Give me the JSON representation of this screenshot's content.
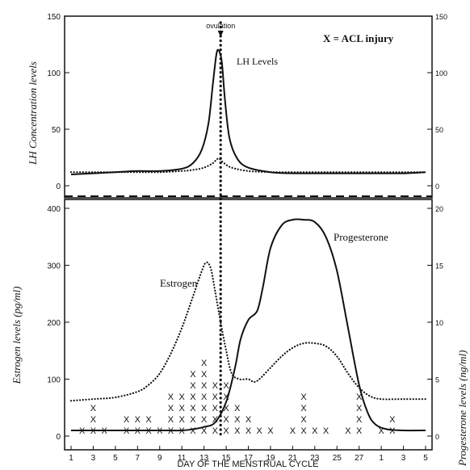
{
  "chart_data": {
    "type": "line",
    "title": "",
    "xlabel": "DAY OF THE MENSTRUAL CYCLE",
    "x_ticks": [
      "1",
      "3",
      "5",
      "7",
      "9",
      "11",
      "13",
      "15",
      "17",
      "19",
      "21",
      "23",
      "25",
      "27",
      "1",
      "3",
      "5"
    ],
    "top_panel": {
      "ylabel_left": "LH Concentration levels",
      "yticks_left": [
        "150",
        "100",
        "50",
        "0"
      ],
      "yticks_right": [
        "150",
        "100",
        "50",
        "0"
      ],
      "ylim": [
        0,
        150
      ],
      "legend_note": "X =  ACL injury",
      "ovulation_label": "ovulation",
      "ovulation_day": 14.5,
      "series": [
        {
          "name": "LH Levels",
          "style": "solid",
          "points": [
            [
              1,
              10
            ],
            [
              3,
              11
            ],
            [
              5,
              12
            ],
            [
              7,
              13
            ],
            [
              9,
              13
            ],
            [
              11,
              15
            ],
            [
              12,
              20
            ],
            [
              12.8,
              32
            ],
            [
              13.4,
              55
            ],
            [
              13.8,
              90
            ],
            [
              14.1,
              115
            ],
            [
              14.3,
              120
            ],
            [
              14.6,
              110
            ],
            [
              14.9,
              75
            ],
            [
              15.3,
              42
            ],
            [
              16,
              24
            ],
            [
              17,
              16
            ],
            [
              19,
              12
            ],
            [
              21,
              11
            ],
            [
              23,
              11
            ],
            [
              25,
              11
            ],
            [
              27,
              11
            ],
            [
              29,
              11
            ],
            [
              31,
              11
            ],
            [
              33,
              12
            ]
          ]
        },
        {
          "name": "",
          "style": "dotted",
          "points": [
            [
              1,
              12
            ],
            [
              3,
              12
            ],
            [
              5,
              12
            ],
            [
              7,
              12
            ],
            [
              9,
              12
            ],
            [
              11,
              13
            ],
            [
              12,
              14
            ],
            [
              13,
              16
            ],
            [
              13.8,
              20
            ],
            [
              14.3,
              24
            ],
            [
              14.8,
              20
            ],
            [
              15.5,
              16
            ],
            [
              17,
              13
            ],
            [
              19,
              12
            ],
            [
              21,
              12
            ],
            [
              23,
              12
            ],
            [
              25,
              12
            ],
            [
              27,
              12
            ],
            [
              29,
              12
            ],
            [
              31,
              12
            ],
            [
              33,
              12
            ]
          ]
        }
      ]
    },
    "bottom_panel": {
      "ylabel_left": "Estrogen levels  (pg/ml)",
      "ylabel_right": "Progesterone levels  (ng/ml)",
      "yticks_left": [
        "400",
        "300",
        "200",
        "100",
        "0"
      ],
      "yticks_right": [
        "20",
        "15",
        "10",
        "5",
        "0"
      ],
      "ylim_left": [
        0,
        400
      ],
      "ylim_right": [
        0,
        20
      ],
      "series": [
        {
          "name": "Estrogen",
          "style": "dotted",
          "axis": "left",
          "points": [
            [
              1,
              62
            ],
            [
              3,
              65
            ],
            [
              5,
              68
            ],
            [
              7,
              78
            ],
            [
              8,
              90
            ],
            [
              9,
              110
            ],
            [
              10,
              145
            ],
            [
              11,
              190
            ],
            [
              12,
              245
            ],
            [
              12.8,
              290
            ],
            [
              13.2,
              305
            ],
            [
              13.6,
              295
            ],
            [
              14,
              255
            ],
            [
              14.5,
              200
            ],
            [
              15,
              150
            ],
            [
              15.5,
              110
            ],
            [
              16.2,
              100
            ],
            [
              17,
              100
            ],
            [
              17.5,
              95
            ],
            [
              18,
              100
            ],
            [
              19,
              120
            ],
            [
              20,
              140
            ],
            [
              21,
              155
            ],
            [
              22,
              163
            ],
            [
              23,
              163
            ],
            [
              24,
              158
            ],
            [
              25,
              140
            ],
            [
              26,
              110
            ],
            [
              27,
              85
            ],
            [
              28,
              70
            ],
            [
              29,
              65
            ],
            [
              31,
              65
            ],
            [
              33,
              65
            ]
          ]
        },
        {
          "name": "Progesterone",
          "style": "solid",
          "axis": "right",
          "points": [
            [
              1,
              0.5
            ],
            [
              3,
              0.5
            ],
            [
              5,
              0.5
            ],
            [
              7,
              0.5
            ],
            [
              9,
              0.5
            ],
            [
              11,
              0.5
            ],
            [
              12,
              0.6
            ],
            [
              13,
              0.8
            ],
            [
              14,
              1.2
            ],
            [
              15,
              3
            ],
            [
              15.8,
              6
            ],
            [
              16.3,
              8.5
            ],
            [
              17,
              10.2
            ],
            [
              17.8,
              11
            ],
            [
              18.3,
              13
            ],
            [
              19,
              16.5
            ],
            [
              20,
              18.5
            ],
            [
              21,
              19
            ],
            [
              22,
              19
            ],
            [
              23,
              18.8
            ],
            [
              24,
              17.5
            ],
            [
              25,
              14.5
            ],
            [
              26,
              9.5
            ],
            [
              27,
              4.5
            ],
            [
              27.8,
              2
            ],
            [
              28.5,
              1
            ],
            [
              29.5,
              0.6
            ],
            [
              31,
              0.5
            ],
            [
              33,
              0.5
            ]
          ]
        }
      ]
    },
    "acl_injury_marker": "X",
    "acl_injury_counts": [
      {
        "day": 2,
        "count": 1
      },
      {
        "day": 3,
        "count": 3
      },
      {
        "day": 4,
        "count": 1
      },
      {
        "day": 6,
        "count": 2
      },
      {
        "day": 7,
        "count": 2
      },
      {
        "day": 8,
        "count": 2
      },
      {
        "day": 9,
        "count": 1
      },
      {
        "day": 10,
        "count": 4
      },
      {
        "day": 11,
        "count": 4
      },
      {
        "day": 12,
        "count": 6
      },
      {
        "day": 13,
        "count": 7
      },
      {
        "day": 14,
        "count": 5
      },
      {
        "day": 15,
        "count": 5
      },
      {
        "day": 16,
        "count": 3
      },
      {
        "day": 17,
        "count": 2
      },
      {
        "day": 18,
        "count": 1
      },
      {
        "day": 19,
        "count": 1
      },
      {
        "day": 21,
        "count": 1
      },
      {
        "day": 22,
        "count": 4
      },
      {
        "day": 23,
        "count": 1
      },
      {
        "day": 24,
        "count": 1
      },
      {
        "day": 26,
        "count": 1
      },
      {
        "day": 27,
        "count": 4
      },
      {
        "day": 29,
        "count": 1
      },
      {
        "day": 30,
        "count": 2
      }
    ]
  }
}
